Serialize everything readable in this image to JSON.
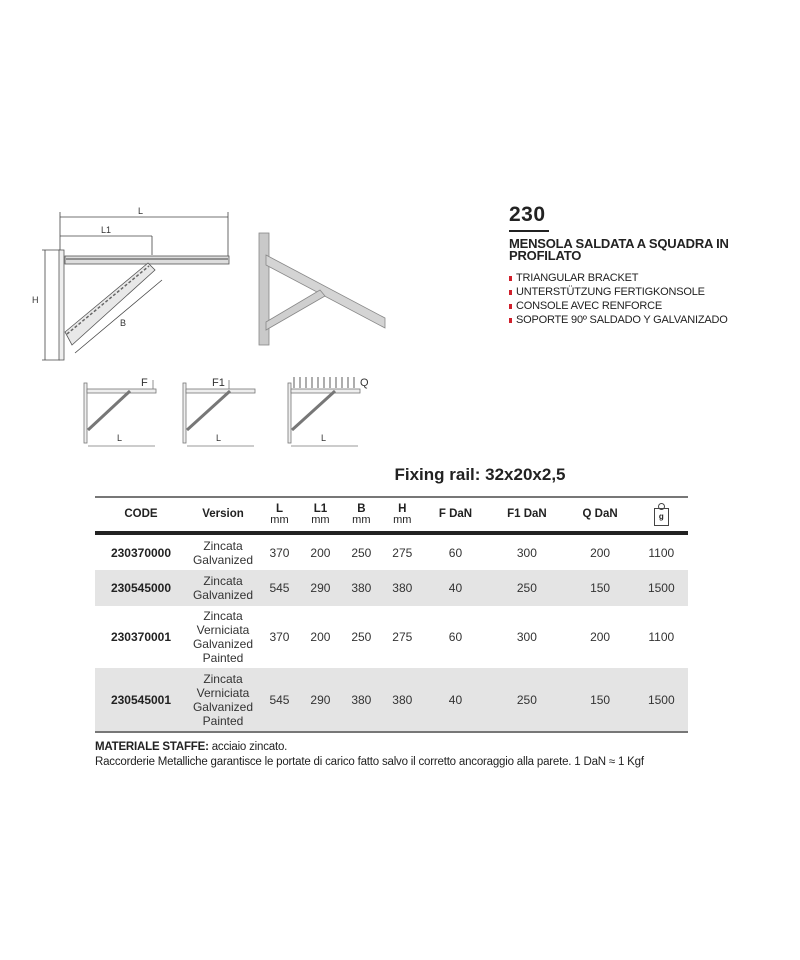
{
  "product": {
    "number": "230",
    "title": "MENSOLA SALDATA A SQUADRA IN PROFILATO",
    "translations": [
      "TRIANGULAR BRACKET",
      "UNTERSTÜTZUNG FERTIGKONSOLE",
      "CONSOLE AVEC RENFORCE",
      "SOPORTE 90º SALDADO Y GALVANIZADO"
    ],
    "bullet_color": "#d01f2b"
  },
  "diagram": {
    "label_L": "L",
    "label_L1": "L1",
    "label_B": "B",
    "label_H": "H",
    "load_F": "F",
    "load_F1": "F1",
    "load_Q": "Q"
  },
  "fixing_rail": "Fixing rail: 32x20x2,5",
  "table": {
    "headers": {
      "code": "CODE",
      "version": "Version",
      "L": "L",
      "L1": "L1",
      "B": "B",
      "H": "H",
      "unit": "mm",
      "F": "F DaN",
      "F1": "F1 DaN",
      "Q": "Q DaN",
      "weight_icon": "weight-g-icon",
      "weight_unit": "g"
    },
    "rows": [
      {
        "code": "230370000",
        "version": [
          "Zincata",
          "Galvanized"
        ],
        "L": "370",
        "L1": "200",
        "B": "250",
        "H": "275",
        "F": "60",
        "F1": "300",
        "Q": "200",
        "g": "1100"
      },
      {
        "code": "230545000",
        "version": [
          "Zincata",
          "Galvanized"
        ],
        "L": "545",
        "L1": "290",
        "B": "380",
        "H": "380",
        "F": "40",
        "F1": "250",
        "Q": "150",
        "g": "1500"
      },
      {
        "code": "230370001",
        "version": [
          "Zincata",
          "Verniciata",
          "Galvanized",
          "Painted"
        ],
        "L": "370",
        "L1": "200",
        "B": "250",
        "H": "275",
        "F": "60",
        "F1": "300",
        "Q": "200",
        "g": "1100"
      },
      {
        "code": "230545001",
        "version": [
          "Zincata",
          "Verniciata",
          "Galvanized",
          "Painted"
        ],
        "L": "545",
        "L1": "290",
        "B": "380",
        "H": "380",
        "F": "40",
        "F1": "250",
        "Q": "150",
        "g": "1500"
      }
    ]
  },
  "notes": {
    "material_label": "MATERIALE STAFFE:",
    "material_value": "acciaio zincato.",
    "disclaimer": "Raccorderie Metalliche garantisce le portate di carico fatto salvo il corretto ancoraggio alla parete. 1 DaN ≈ 1 Kgf"
  }
}
